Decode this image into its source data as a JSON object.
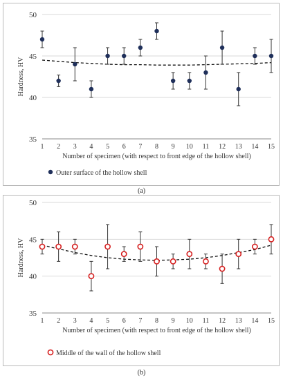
{
  "chart_data": [
    {
      "type": "scatter",
      "panel_label": "a",
      "ylabel": "Hardness, HV",
      "xlabel": "Number of specimen (with respect to front edge of the hollow shell)",
      "ylim": [
        35,
        50
      ],
      "yticks": [
        35,
        40,
        45,
        50
      ],
      "xlim": [
        1,
        15
      ],
      "xticks": [
        1,
        2,
        3,
        4,
        5,
        6,
        7,
        8,
        9,
        10,
        11,
        12,
        13,
        14,
        15
      ],
      "grid": "horizontal",
      "legend_position": "bottom",
      "series": [
        {
          "name": "Outer surface of the hollow shell",
          "marker": "filled-circle",
          "color": "#1f2f5a",
          "x": [
            1,
            2,
            3,
            4,
            5,
            6,
            7,
            8,
            9,
            10,
            11,
            12,
            13,
            14,
            15
          ],
          "y": [
            47,
            42,
            44,
            41,
            45,
            45,
            46,
            48,
            42,
            42,
            43,
            46,
            41,
            45,
            45
          ],
          "err_low": [
            1,
            0.7,
            2,
            1,
            1,
            1,
            1,
            1,
            1,
            1,
            2,
            2,
            2,
            1,
            2
          ],
          "err_high": [
            1,
            0.7,
            2,
            1,
            1,
            1,
            1,
            1,
            1,
            1,
            2,
            2,
            2,
            1,
            2
          ]
        }
      ],
      "trend": {
        "style": "dashed",
        "y": [
          44.5,
          44.35,
          44.2,
          44.1,
          44.0,
          43.95,
          43.95,
          43.9,
          43.9,
          43.9,
          43.95,
          44.0,
          44.05,
          44.1,
          44.2
        ]
      }
    },
    {
      "type": "scatter",
      "panel_label": "b",
      "ylabel": "Hardness, HV",
      "xlabel": "Number of specimen (with respect to front edge of the hollow shell)",
      "ylim": [
        35,
        50
      ],
      "yticks": [
        35,
        40,
        45,
        50
      ],
      "xlim": [
        1,
        15
      ],
      "xticks": [
        1,
        2,
        3,
        4,
        5,
        6,
        7,
        8,
        9,
        10,
        11,
        12,
        13,
        14,
        15
      ],
      "grid": "horizontal",
      "legend_position": "bottom",
      "series": [
        {
          "name": "Middle of the wall of the hollow shell",
          "marker": "open-circle",
          "color": "#d62020",
          "x": [
            1,
            2,
            3,
            4,
            5,
            6,
            7,
            8,
            9,
            10,
            11,
            12,
            13,
            14,
            15
          ],
          "y": [
            44,
            44,
            44,
            40,
            44,
            43,
            44,
            42,
            42,
            43,
            42,
            41,
            43,
            44,
            45
          ],
          "err_low": [
            1,
            2,
            1,
            2,
            3,
            1,
            2,
            2,
            1,
            2,
            1,
            2,
            2,
            1,
            2
          ],
          "err_high": [
            1,
            2,
            1,
            2,
            3,
            1,
            2,
            2,
            1,
            2,
            1,
            2,
            2,
            1,
            2
          ]
        }
      ],
      "trend": {
        "style": "dashed",
        "y": [
          44.2,
          43.7,
          43.2,
          42.8,
          42.5,
          42.3,
          42.2,
          42.15,
          42.2,
          42.3,
          42.5,
          42.8,
          43.2,
          43.6,
          44.2
        ]
      }
    }
  ],
  "captions": {
    "a": "(a)",
    "b": "(b)"
  },
  "colors": {
    "frame": "#b9b9b9",
    "gridline": "#d9d9d9",
    "errorbar": "#333333",
    "trendline": "#111111"
  }
}
